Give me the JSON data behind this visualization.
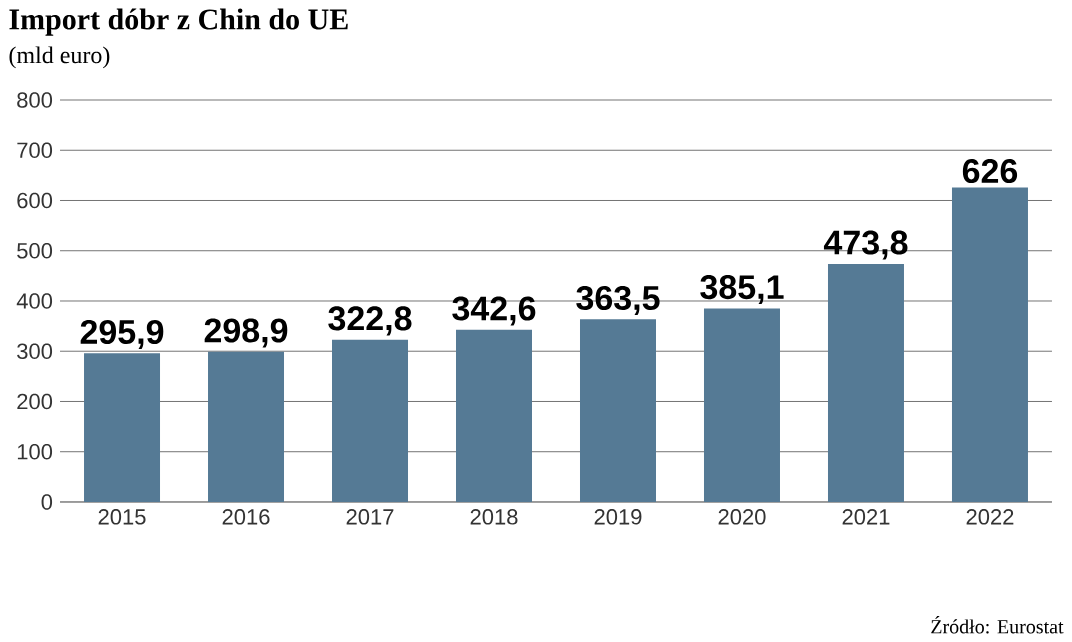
{
  "chart_data": {
    "type": "bar",
    "title": "Import dóbr z Chin do UE",
    "subtitle": "(mld euro)",
    "categories": [
      "2015",
      "2016",
      "2017",
      "2018",
      "2019",
      "2020",
      "2021",
      "2022"
    ],
    "values": [
      295.9,
      298.9,
      322.8,
      342.6,
      363.5,
      385.1,
      473.8,
      626
    ],
    "value_labels": [
      "295,9",
      "298,9",
      "322,8",
      "342,6",
      "363,5",
      "385,1",
      "473,8",
      "626"
    ],
    "color": "#557a95",
    "ylim": [
      0,
      800
    ],
    "yticks": [
      0,
      100,
      200,
      300,
      400,
      500,
      600,
      700,
      800
    ],
    "grid": "y",
    "annotations": [
      "Źródło: Eurostat"
    ]
  }
}
